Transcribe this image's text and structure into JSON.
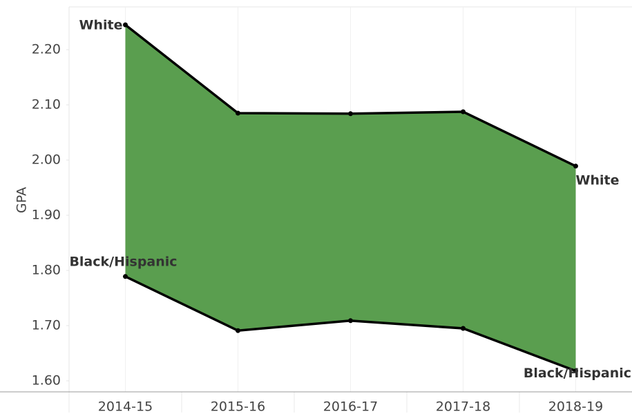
{
  "chart_data": {
    "type": "area_range",
    "y_label": "GPA",
    "categories": [
      "2014-15",
      "2015-16",
      "2016-17",
      "2017-18",
      "2018-19"
    ],
    "series": [
      {
        "name": "White",
        "color": "#000000",
        "values": [
          2.245,
          2.085,
          2.084,
          2.0875,
          1.989
        ]
      },
      {
        "name": "Black/Hispanic",
        "color": "#000000",
        "values": [
          1.789,
          1.691,
          1.709,
          1.695,
          1.618
        ]
      }
    ],
    "fill_color": "#5a9e4f",
    "ylim": [
      1.58,
      2.2775
    ],
    "yticks": [
      {
        "value": 1.6,
        "label": "1.60"
      },
      {
        "value": 1.7,
        "label": "1.70"
      },
      {
        "value": 1.8,
        "label": "1.80"
      },
      {
        "value": 1.9,
        "label": "1.90"
      },
      {
        "value": 2.0,
        "label": "2.00"
      },
      {
        "value": 2.1,
        "label": "2.10"
      },
      {
        "value": 2.2,
        "label": "2.20"
      }
    ]
  }
}
